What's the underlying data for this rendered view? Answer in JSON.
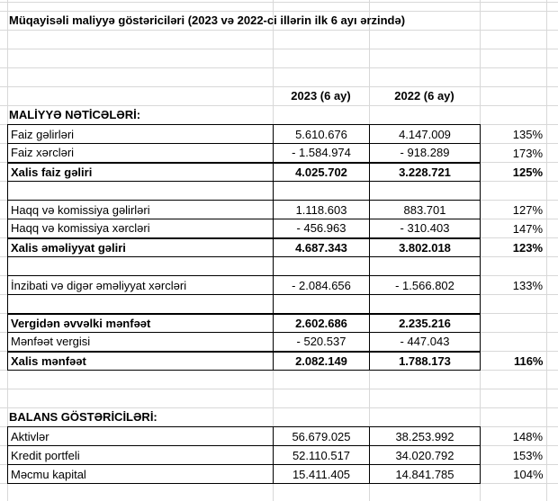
{
  "colors": {
    "background": "#ffffff",
    "text": "#000000",
    "border": "#000000",
    "gridline": "#d8d8d8"
  },
  "sheet": {
    "title": "Müqayisəli maliyyə göstəriciləri (2023 və 2022-ci illərin ilk 6 ayı ərzində)",
    "column_headers": {
      "y2023": "2023 (6 ay)",
      "y2022": "2022 (6 ay)"
    },
    "sections": [
      {
        "header": "MALİYYƏ NƏTİCƏLƏRİ:",
        "rows": [
          {
            "label": "Faiz gəlirləri",
            "v2023": "5.610.676",
            "v2022": "4.147.009",
            "pct": "135%",
            "bold": false,
            "empty": false
          },
          {
            "label": "Faiz xərcləri",
            "v2023": "- 1.584.974",
            "v2022": "- 918.289",
            "pct": "173%",
            "bold": false,
            "empty": false
          },
          {
            "label": "Xalis faiz gəliri",
            "v2023": "4.025.702",
            "v2022": "3.228.721",
            "pct": "125%",
            "bold": true,
            "empty": false
          },
          {
            "label": "",
            "v2023": "",
            "v2022": "",
            "pct": "",
            "bold": false,
            "empty": true
          },
          {
            "label": "Haqq və komissiya gəlirləri",
            "v2023": "1.118.603",
            "v2022": "883.701",
            "pct": "127%",
            "bold": false,
            "empty": false
          },
          {
            "label": "Haqq və komissiya xərcləri",
            "v2023": "- 456.963",
            "v2022": "- 310.403",
            "pct": "147%",
            "bold": false,
            "empty": false
          },
          {
            "label": "Xalis əməliyyat gəliri",
            "v2023": "4.687.343",
            "v2022": "3.802.018",
            "pct": "123%",
            "bold": true,
            "empty": false
          },
          {
            "label": "",
            "v2023": "",
            "v2022": "",
            "pct": "",
            "bold": false,
            "empty": true
          },
          {
            "label": "İnzibati və digər əməliyyat xərcləri",
            "v2023": "- 2.084.656",
            "v2022": "- 1.566.802",
            "pct": "133%",
            "bold": false,
            "empty": false
          },
          {
            "label": "",
            "v2023": "",
            "v2022": "",
            "pct": "",
            "bold": false,
            "empty": true
          },
          {
            "label": "Vergidən əvvəlki mənfəət",
            "v2023": "2.602.686",
            "v2022": "2.235.216",
            "pct": "",
            "bold": true,
            "empty": false
          },
          {
            "label": "Mənfəət vergisi",
            "v2023": "- 520.537",
            "v2022": "- 447.043",
            "pct": "",
            "bold": false,
            "empty": false
          },
          {
            "label": "Xalis mənfəət",
            "v2023": "2.082.149",
            "v2022": "1.788.173",
            "pct": "116%",
            "bold": true,
            "empty": false
          }
        ]
      },
      {
        "header": "BALANS GÖSTƏRİCİLƏRİ:",
        "rows": [
          {
            "label": "Aktivlər",
            "v2023": "56.679.025",
            "v2022": "38.253.992",
            "pct": "148%",
            "bold": false,
            "empty": false
          },
          {
            "label": "Kredit portfeli",
            "v2023": "52.110.517",
            "v2022": "34.020.792",
            "pct": "153%",
            "bold": false,
            "empty": false
          },
          {
            "label": "Məcmu kapital",
            "v2023": "15.411.405",
            "v2022": "14.841.785",
            "pct": "104%",
            "bold": false,
            "empty": false
          }
        ]
      }
    ]
  }
}
